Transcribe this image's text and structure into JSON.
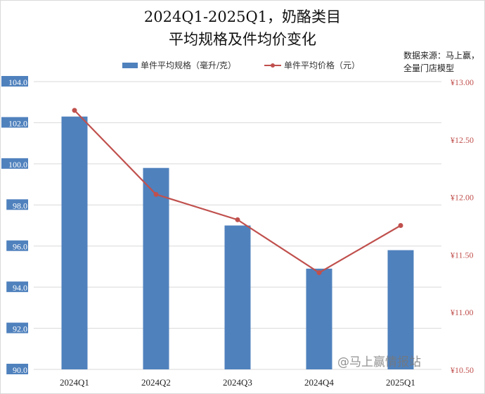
{
  "chart_data": {
    "type": "bar+line",
    "title": [
      "2024Q1-2025Q1，奶酪类目",
      "平均规格及件均价变化"
    ],
    "categories": [
      "2024Q1",
      "2024Q2",
      "2024Q3",
      "2024Q4",
      "2025Q1"
    ],
    "series": [
      {
        "name": "单件平均规格（毫升/克）",
        "type": "bar",
        "axis": "left",
        "color": "#4f81bd",
        "values": [
          102.3,
          99.8,
          97.0,
          94.9,
          95.8
        ]
      },
      {
        "name": "单件平均价格（元）",
        "type": "line",
        "axis": "right",
        "color": "#c0504d",
        "values": [
          12.75,
          12.02,
          11.8,
          11.34,
          11.75
        ]
      }
    ],
    "left_axis": {
      "ylim": [
        90,
        104
      ],
      "ticks": [
        "90.0",
        "92.0",
        "94.0",
        "96.0",
        "98.0",
        "100.0",
        "102.0",
        "104.0"
      ]
    },
    "right_axis": {
      "ylim": [
        10.5,
        13.0
      ],
      "ticks": [
        "¥10.50",
        "¥11.00",
        "¥11.50",
        "¥12.00",
        "¥12.50",
        "¥13.00"
      ]
    },
    "legend_position": "top",
    "grid": true
  },
  "source_note": [
    "数据来源：马上赢，",
    "全量门店模型"
  ],
  "watermark": "@马上赢情报站"
}
